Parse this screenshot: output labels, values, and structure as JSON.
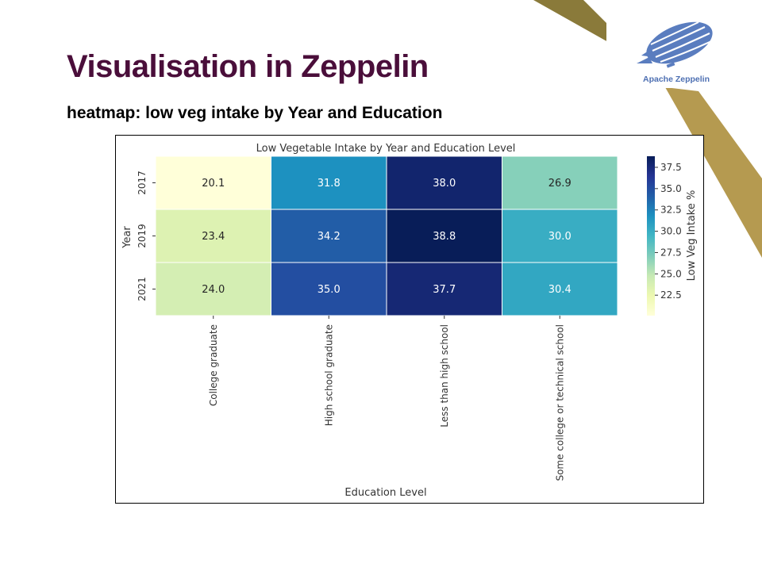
{
  "slide": {
    "title": "Visualisation in Zeppelin",
    "subtitle": "heatmap: low veg intake by Year and Education"
  },
  "logo": {
    "text": "Apache Zeppelin",
    "icon": "zeppelin-airship-icon"
  },
  "colors": {
    "title": "#4a0e3a",
    "accent_gold": "#b59a50",
    "accent_olive": "#8a7a3a",
    "logo_blue": "#4d6fb2"
  },
  "chart_data": {
    "type": "heatmap",
    "title": "Low Vegetable Intake by Year and Education Level",
    "xlabel": "Education Level",
    "ylabel": "Year",
    "x_categories": [
      "College graduate",
      "High school graduate",
      "Less than high school",
      "Some college or technical school"
    ],
    "y_categories": [
      "2017",
      "2019",
      "2021"
    ],
    "values": [
      [
        20.1,
        31.8,
        38.0,
        26.9
      ],
      [
        23.4,
        34.2,
        38.8,
        30.0
      ],
      [
        24.0,
        35.0,
        37.7,
        30.4
      ]
    ],
    "value_labels": [
      [
        "20.1",
        "31.8",
        "38.0",
        "26.9"
      ],
      [
        "23.4",
        "34.2",
        "38.8",
        "30.0"
      ],
      [
        "24.0",
        "35.0",
        "37.7",
        "30.4"
      ]
    ],
    "colorbar": {
      "label": "Low Veg Intake %",
      "range": [
        20.1,
        38.8
      ],
      "ticks": [
        "22.5",
        "25.0",
        "27.5",
        "30.0",
        "32.5",
        "35.0",
        "37.5"
      ],
      "colormap": "YlGnBu"
    }
  }
}
